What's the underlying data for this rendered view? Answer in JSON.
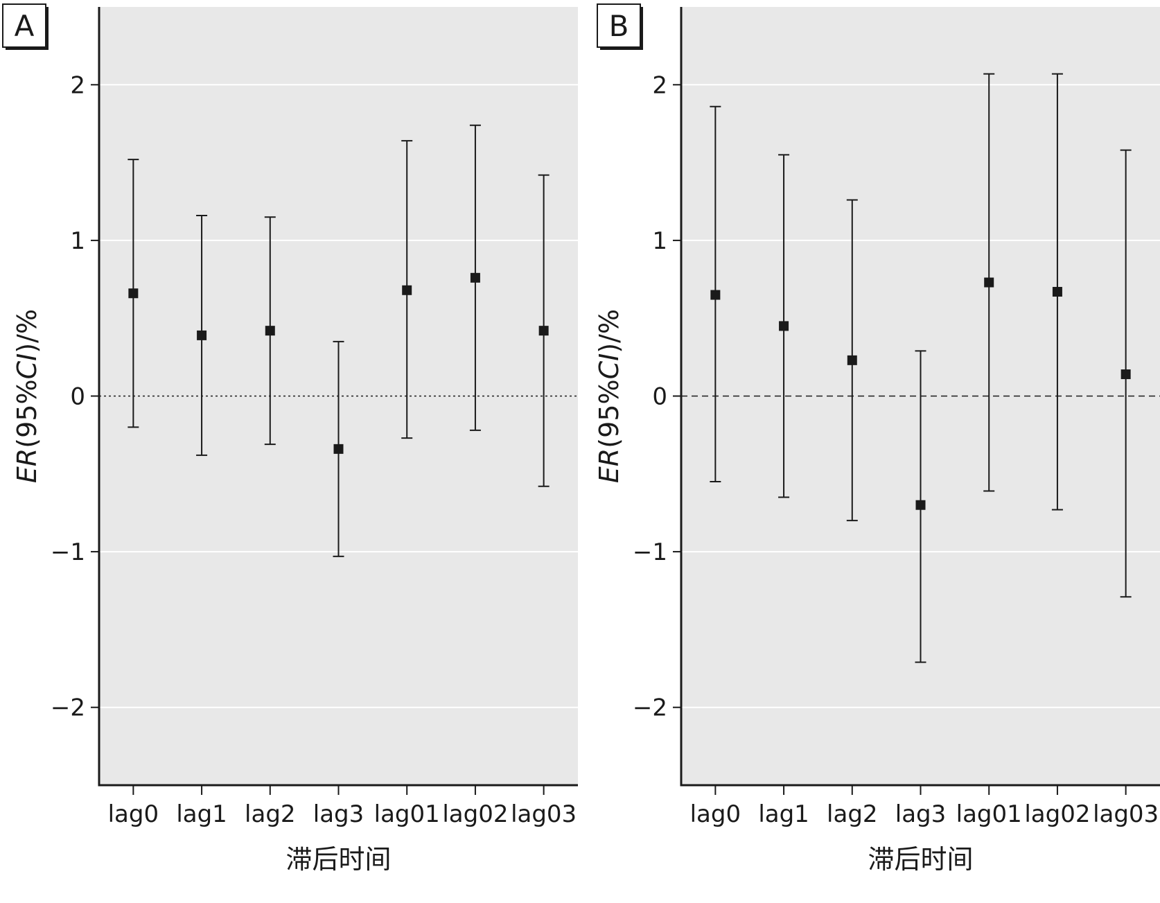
{
  "chart_data": [
    {
      "panel": "A",
      "type": "scatter",
      "categories": [
        "lag0",
        "lag1",
        "lag2",
        "lag3",
        "lag01",
        "lag02",
        "lag03"
      ],
      "values": [
        0.66,
        0.39,
        0.42,
        -0.34,
        0.68,
        0.76,
        0.42
      ],
      "lower": [
        -0.2,
        -0.38,
        -0.31,
        -1.03,
        -0.27,
        -0.22,
        -0.58
      ],
      "upper": [
        1.52,
        1.16,
        1.15,
        0.35,
        1.64,
        1.74,
        1.42
      ],
      "xlabel": "滞后时间",
      "ylabel": {
        "italic_part": "ER",
        "pre": "(95%",
        "italic_ci": "CI",
        "post": ")/%"
      },
      "ylim": [
        -2.5,
        2.5
      ],
      "yticks": [
        {
          "v": 2,
          "label": "2"
        },
        {
          "v": 1,
          "label": "1"
        },
        {
          "v": 0,
          "label": "0"
        },
        {
          "v": -1,
          "label": "−1"
        },
        {
          "v": -2,
          "label": "−2"
        }
      ],
      "reference_line": {
        "y": 0,
        "style": "dotted"
      },
      "grid": true,
      "background": "#e8e8e8"
    },
    {
      "panel": "B",
      "type": "scatter",
      "categories": [
        "lag0",
        "lag1",
        "lag2",
        "lag3",
        "lag01",
        "lag02",
        "lag03"
      ],
      "values": [
        0.65,
        0.45,
        0.23,
        -0.7,
        0.73,
        0.67,
        0.14
      ],
      "lower": [
        -0.55,
        -0.65,
        -0.8,
        -1.71,
        -0.61,
        -0.73,
        -1.29
      ],
      "upper": [
        1.86,
        1.55,
        1.26,
        0.29,
        2.07,
        2.07,
        1.58
      ],
      "xlabel": "滞后时间",
      "ylabel": {
        "italic_part": "ER",
        "pre": "(95%",
        "italic_ci": "CI",
        "post": ")/%"
      },
      "ylim": [
        -2.5,
        2.5
      ],
      "yticks": [
        {
          "v": 2,
          "label": "2"
        },
        {
          "v": 1,
          "label": "1"
        },
        {
          "v": 0,
          "label": "0"
        },
        {
          "v": -1,
          "label": "−1"
        },
        {
          "v": -2,
          "label": "−2"
        }
      ],
      "reference_line": {
        "y": 0,
        "style": "dashed"
      },
      "grid": true,
      "background": "#e8e8e8"
    }
  ]
}
